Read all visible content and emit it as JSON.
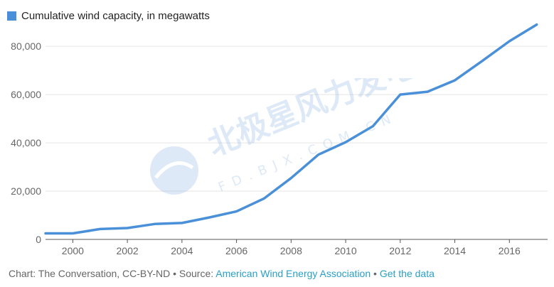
{
  "legend": {
    "label": "Cumulative wind capacity, in megawatts"
  },
  "colors": {
    "series": "#4a90d9",
    "grid": "#e5e5e5",
    "axis": "#555555",
    "link": "#2a9fc7"
  },
  "watermark": {
    "chinese": "北极星风力发电网",
    "latin": "FD.BJX.COM.CN"
  },
  "footer": {
    "prefix": "Chart: The Conversation, CC-BY-ND • Source: ",
    "source_link": "American Wind Energy Association",
    "separator": " • ",
    "data_link": "Get the data"
  },
  "chart_data": {
    "type": "line",
    "title": "",
    "xlabel": "",
    "ylabel": "",
    "xlim": [
      1999,
      2017.4
    ],
    "ylim": [
      0,
      88000
    ],
    "x_ticks": [
      2000,
      2002,
      2004,
      2006,
      2008,
      2010,
      2012,
      2014,
      2016
    ],
    "y_ticks": [
      0,
      20000,
      40000,
      60000,
      80000
    ],
    "y_tick_labels": [
      "0",
      "20,000",
      "40,000",
      "60,000",
      "80,000"
    ],
    "grid": true,
    "legend_position": "top-left",
    "series": [
      {
        "name": "Cumulative wind capacity, in megawatts",
        "x": [
          1999,
          2000,
          2001,
          2002,
          2003,
          2004,
          2005,
          2006,
          2007,
          2008,
          2009,
          2010,
          2011,
          2012,
          2013,
          2014,
          2015,
          2016,
          2017
        ],
        "y": [
          2500,
          2500,
          4300,
          4700,
          6400,
          6800,
          9100,
          11600,
          16900,
          25400,
          35100,
          40300,
          46900,
          60000,
          61200,
          65900,
          73900,
          82100,
          89000
        ]
      }
    ]
  }
}
